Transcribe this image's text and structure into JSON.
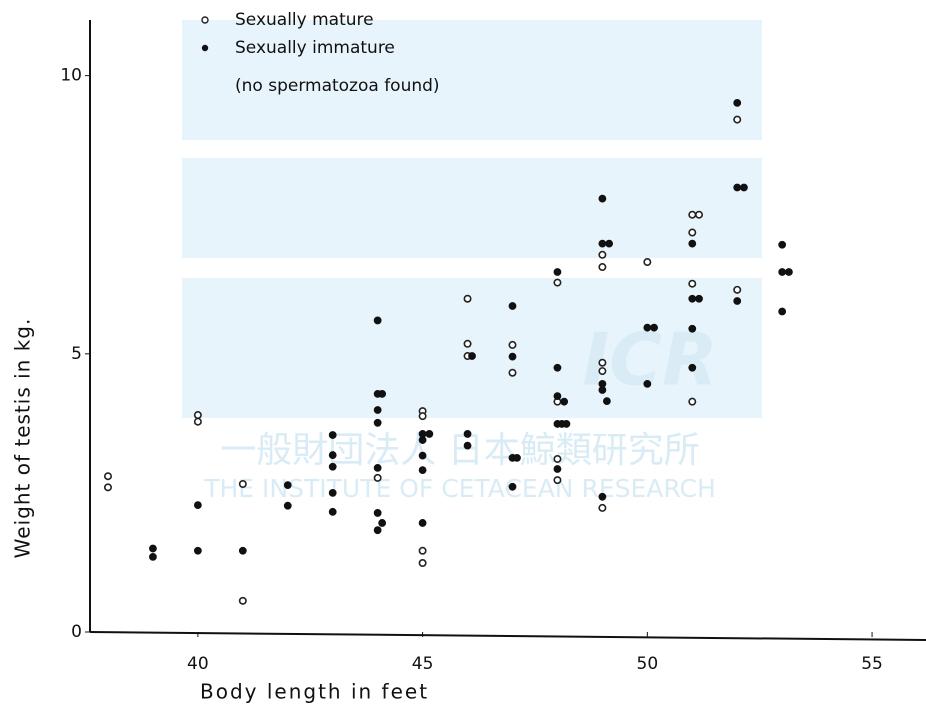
{
  "chart_data": {
    "type": "scatter",
    "xlabel": "Body length in feet",
    "ylabel": "Weight of testis in kg.",
    "legend_note": "(no spermatozoa found)",
    "watermark": [
      "ICR",
      "一般財団法人 日本鯨類研究所",
      "THE INSTITUTE OF CETACEAN RESEARCH"
    ],
    "xlim": [
      37.6,
      56.2
    ],
    "ylim": [
      0,
      11
    ],
    "xticks": [
      40,
      45,
      50,
      55
    ],
    "yticks": [
      0,
      5,
      10
    ],
    "series": [
      {
        "name": "Sexually mature",
        "marker": "open",
        "color": "#222",
        "x": [
          38,
          38,
          40,
          40,
          41,
          41,
          44,
          45,
          45,
          45,
          45,
          46,
          46,
          46,
          47,
          47,
          48,
          48,
          48,
          48,
          49,
          49,
          49,
          49,
          49,
          50,
          51,
          51.15,
          51,
          51,
          51,
          52,
          52
        ],
        "values": [
          2.8,
          2.6,
          3.9,
          3.78,
          2.66,
          0.56,
          2.77,
          3.97,
          3.88,
          1.46,
          1.24,
          5.99,
          5.18,
          4.96,
          5.16,
          4.66,
          6.28,
          4.14,
          3.11,
          2.73,
          6.78,
          6.56,
          4.84,
          4.69,
          2.23,
          6.65,
          7.5,
          7.5,
          7.18,
          6.26,
          4.14,
          9.21,
          6.15
        ]
      },
      {
        "name": "Sexually immature",
        "marker": "filled",
        "color": "#111",
        "x": [
          39,
          39,
          40,
          40,
          41,
          42,
          42,
          43,
          43,
          43,
          43,
          43,
          44,
          44.1,
          44,
          44,
          44,
          44,
          44,
          44.1,
          44,
          45,
          45.15,
          45,
          45,
          45,
          45,
          46.1,
          46,
          46,
          47,
          47,
          47,
          47.1,
          47,
          48,
          48,
          48,
          48.15,
          48,
          48.1,
          48.2,
          48,
          49,
          49.15,
          49,
          49,
          49,
          49.1,
          49,
          50,
          50.15,
          50,
          51,
          51,
          51.15,
          51,
          51,
          52,
          52,
          52.15,
          52,
          53,
          53,
          53.15,
          53
        ],
        "values": [
          1.5,
          1.35,
          2.28,
          1.46,
          1.46,
          2.64,
          2.27,
          3.54,
          3.18,
          2.97,
          2.5,
          2.16,
          5.6,
          4.28,
          4.28,
          3.99,
          3.76,
          2.95,
          2.14,
          1.96,
          1.83,
          3.56,
          3.56,
          3.45,
          3.17,
          2.91,
          1.96,
          4.96,
          3.56,
          3.35,
          5.86,
          4.95,
          3.13,
          3.13,
          2.61,
          6.47,
          4.75,
          4.24,
          4.14,
          3.74,
          3.74,
          3.74,
          2.93,
          7.79,
          6.98,
          6.98,
          4.46,
          4.35,
          4.15,
          2.43,
          5.47,
          5.47,
          4.46,
          6.98,
          5.99,
          5.99,
          5.45,
          4.75,
          9.51,
          7.99,
          7.99,
          5.95,
          6.96,
          6.47,
          6.47,
          5.76
        ]
      }
    ]
  }
}
